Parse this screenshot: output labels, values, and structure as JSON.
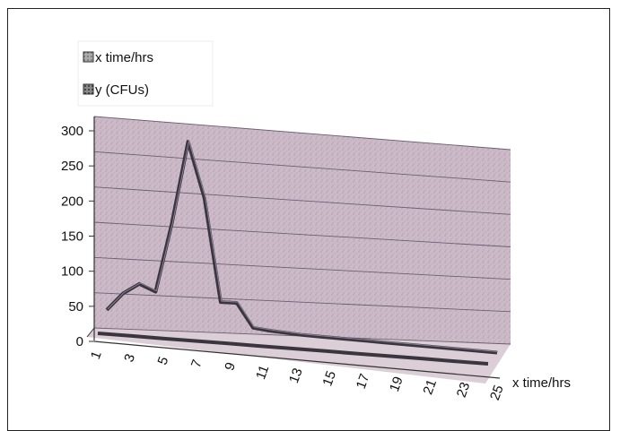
{
  "chart_data": {
    "type": "line",
    "title": "",
    "xlabel": "x time/hrs",
    "ylabel": "",
    "ylim": [
      0,
      300
    ],
    "y_ticks": [
      0,
      50,
      100,
      150,
      200,
      250,
      300
    ],
    "x": [
      1,
      2,
      3,
      4,
      5,
      6,
      7,
      8,
      9,
      10,
      11,
      12,
      13,
      14,
      15,
      16,
      17,
      18,
      19,
      20,
      21,
      22,
      23,
      24,
      25
    ],
    "x_tick_labels": [
      "1",
      "3",
      "5",
      "7",
      "9",
      "11",
      "13",
      "15",
      "17",
      "19",
      "21",
      "23",
      "25"
    ],
    "grid": true,
    "legend_position": "top-left",
    "style": "3d",
    "series": [
      {
        "name": "x time/hrs",
        "color": "#3a3640",
        "values": [
          1,
          2,
          3,
          4,
          5,
          6,
          7,
          8,
          9,
          10,
          11,
          12,
          13,
          14,
          15,
          16,
          17,
          18,
          19,
          20,
          21,
          22,
          23,
          24,
          25
        ]
      },
      {
        "name": "y (CFUs)",
        "color": "#3a3640",
        "values": [
          40,
          65,
          80,
          70,
          170,
          290,
          210,
          60,
          60,
          25,
          22,
          20,
          18,
          17,
          16,
          15,
          14,
          13,
          12,
          11,
          10,
          9,
          8,
          7,
          6
        ]
      }
    ],
    "colors": {
      "wall": "#c9b3c3",
      "floor": "#d3c2cc",
      "grid": "#6a6070",
      "line": "#3a3640"
    }
  }
}
